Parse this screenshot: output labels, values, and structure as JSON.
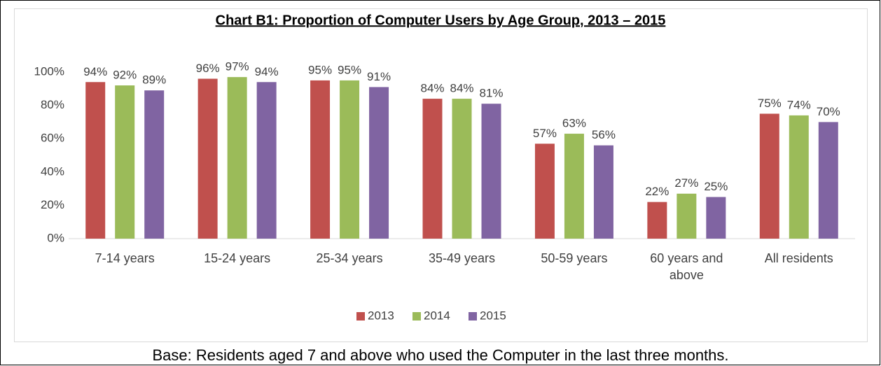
{
  "chart_data": {
    "type": "bar",
    "title": "Chart B1: Proportion of Computer Users by Age Group, 2013 – 2015",
    "note": "Base: Residents aged 7 and above who used the Computer in the last three months.",
    "categories": [
      "7-14 years",
      "15-24 years",
      "25-34 years",
      "35-49 years",
      "50-59 years",
      "60 years and above",
      "All residents"
    ],
    "series": [
      {
        "name": "2013",
        "color": "#c0504d",
        "values": [
          94,
          96,
          95,
          84,
          57,
          22,
          75
        ],
        "value_labels": [
          "94%",
          "96%",
          "95%",
          "84%",
          "57%",
          "22%",
          "75%"
        ]
      },
      {
        "name": "2014",
        "color": "#9bbb59",
        "values": [
          92,
          97,
          95,
          84,
          63,
          27,
          74
        ],
        "value_labels": [
          "92%",
          "97%",
          "95%",
          "84%",
          "63%",
          "27%",
          "74%"
        ]
      },
      {
        "name": "2015",
        "color": "#8064a2",
        "values": [
          89,
          94,
          91,
          81,
          56,
          25,
          70
        ],
        "value_labels": [
          "89%",
          "94%",
          "91%",
          "81%",
          "56%",
          "25%",
          "70%"
        ]
      }
    ],
    "ylim": [
      0,
      100
    ],
    "yticks": [
      {
        "value": 0,
        "label": "0%"
      },
      {
        "value": 20,
        "label": "20%"
      },
      {
        "value": 40,
        "label": "40%"
      },
      {
        "value": 60,
        "label": "60%"
      },
      {
        "value": 80,
        "label": "80%"
      },
      {
        "value": 100,
        "label": "100%"
      }
    ],
    "grid": false,
    "legend": "bottom"
  }
}
